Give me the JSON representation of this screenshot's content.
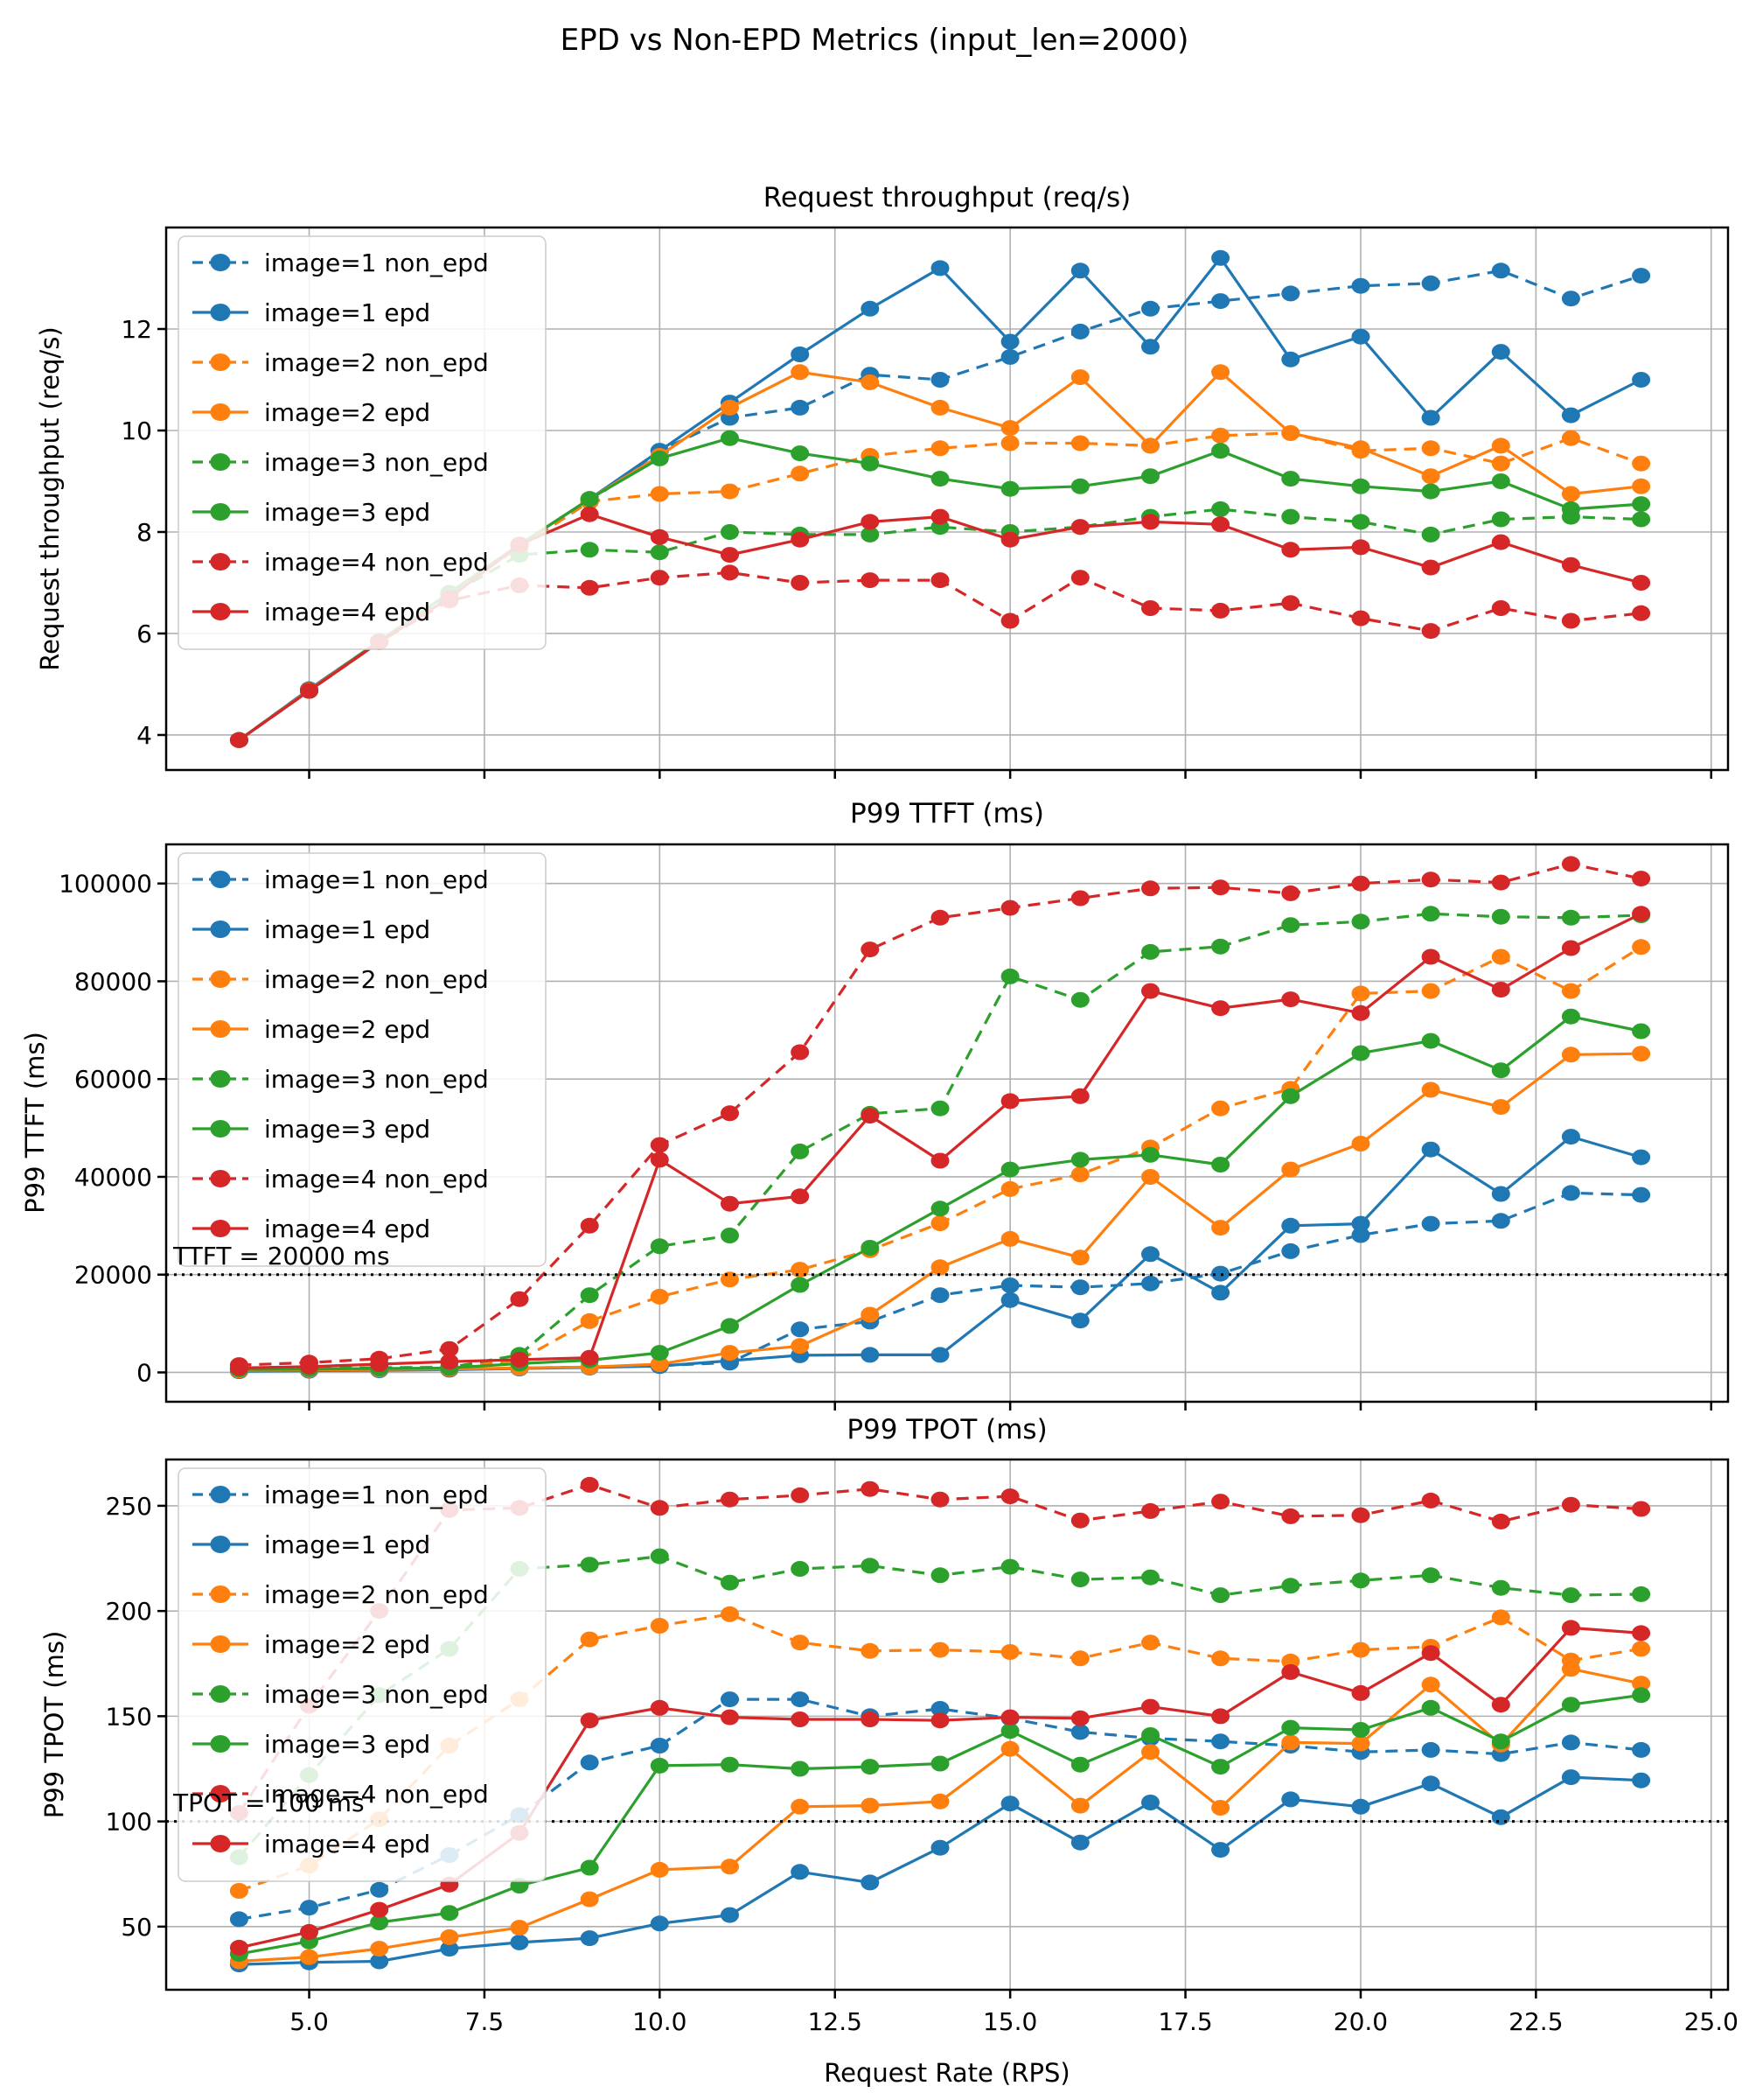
{
  "figure": {
    "title": "EPD vs Non-EPD Metrics (input_len=2000)",
    "xlabel": "Request Rate (RPS)",
    "background": "#ffffff",
    "grid_color": "#b0b0b0",
    "x_tick_values": [
      5.0,
      7.5,
      10.0,
      12.5,
      15.0,
      17.5,
      20.0,
      22.5,
      25.0
    ],
    "x_tick_labels": [
      "5.0",
      "7.5",
      "10.0",
      "12.5",
      "15.0",
      "17.5",
      "20.0",
      "22.5",
      "25.0"
    ]
  },
  "legend": {
    "items": [
      {
        "label": "image=1 non_epd",
        "color": "#1f77b4",
        "dashed": true
      },
      {
        "label": "image=1 epd",
        "color": "#1f77b4",
        "dashed": false
      },
      {
        "label": "image=2 non_epd",
        "color": "#ff7f0e",
        "dashed": true
      },
      {
        "label": "image=2 epd",
        "color": "#ff7f0e",
        "dashed": false
      },
      {
        "label": "image=3 non_epd",
        "color": "#2ca02c",
        "dashed": true
      },
      {
        "label": "image=3 epd",
        "color": "#2ca02c",
        "dashed": false
      },
      {
        "label": "image=4 non_epd",
        "color": "#d62728",
        "dashed": true
      },
      {
        "label": "image=4 epd",
        "color": "#d62728",
        "dashed": false
      }
    ]
  },
  "chart_data": [
    {
      "type": "line",
      "title": "Request throughput (req/s)",
      "ylabel": "Request throughput (req/s)",
      "xlabel": "",
      "x": [
        4,
        5,
        6,
        7,
        8,
        9,
        10,
        11,
        12,
        13,
        14,
        15,
        16,
        17,
        18,
        19,
        20,
        21,
        22,
        23,
        24
      ],
      "xlim": [
        2.96,
        25.24
      ],
      "ylim": [
        3.31,
        14.0
      ],
      "yticks": [
        4,
        6,
        8,
        10,
        12
      ],
      "ytick_labels": [
        "4",
        "6",
        "8",
        "10",
        "12"
      ],
      "grid": true,
      "legend_position": "upper-left",
      "series": [
        {
          "name": "image=1 non_epd",
          "color": "#1f77b4",
          "dashed": true,
          "values": [
            3.9,
            4.9,
            5.85,
            6.8,
            7.7,
            8.6,
            9.6,
            10.25,
            10.45,
            11.1,
            11.0,
            11.45,
            11.95,
            12.4,
            12.55,
            12.7,
            12.85,
            12.9,
            13.15,
            12.6,
            13.05
          ]
        },
        {
          "name": "image=1 epd",
          "color": "#1f77b4",
          "dashed": false,
          "values": [
            3.9,
            4.9,
            5.85,
            6.8,
            7.75,
            8.65,
            9.6,
            10.55,
            11.5,
            12.4,
            13.2,
            11.75,
            13.15,
            11.65,
            13.4,
            11.4,
            11.85,
            10.25,
            11.55,
            10.3,
            11.0
          ]
        },
        {
          "name": "image=2 non_epd",
          "color": "#ff7f0e",
          "dashed": true,
          "values": [
            3.9,
            4.88,
            5.85,
            6.8,
            7.7,
            8.6,
            8.75,
            8.8,
            9.15,
            9.5,
            9.65,
            9.75,
            9.75,
            9.7,
            9.9,
            9.95,
            9.6,
            9.65,
            9.35,
            9.85,
            9.35
          ]
        },
        {
          "name": "image=2 epd",
          "color": "#ff7f0e",
          "dashed": false,
          "values": [
            3.9,
            4.88,
            5.85,
            6.8,
            7.75,
            8.65,
            9.5,
            10.45,
            11.15,
            10.95,
            10.45,
            10.05,
            11.05,
            9.7,
            11.15,
            9.95,
            9.65,
            9.1,
            9.7,
            8.75,
            8.9
          ]
        },
        {
          "name": "image=3 non_epd",
          "color": "#2ca02c",
          "dashed": true,
          "values": [
            3.9,
            4.87,
            5.85,
            6.75,
            7.55,
            7.65,
            7.6,
            8.0,
            7.95,
            7.95,
            8.1,
            8.0,
            8.1,
            8.3,
            8.45,
            8.3,
            8.2,
            7.95,
            8.25,
            8.3,
            8.25
          ]
        },
        {
          "name": "image=3 epd",
          "color": "#2ca02c",
          "dashed": false,
          "values": [
            3.9,
            4.87,
            5.85,
            6.8,
            7.75,
            8.65,
            9.45,
            9.85,
            9.55,
            9.35,
            9.05,
            8.85,
            8.9,
            9.1,
            9.6,
            9.05,
            8.9,
            8.8,
            9.0,
            8.45,
            8.55
          ]
        },
        {
          "name": "image=4 non_epd",
          "color": "#d62728",
          "dashed": true,
          "values": [
            3.9,
            4.87,
            5.83,
            6.65,
            6.95,
            6.9,
            7.1,
            7.2,
            7.0,
            7.05,
            7.05,
            6.25,
            7.1,
            6.5,
            6.45,
            6.6,
            6.3,
            6.05,
            6.5,
            6.25,
            6.4
          ]
        },
        {
          "name": "image=4 epd",
          "color": "#d62728",
          "dashed": false,
          "values": [
            3.9,
            4.87,
            5.83,
            6.7,
            7.75,
            8.35,
            7.9,
            7.55,
            7.85,
            8.2,
            8.3,
            7.85,
            8.1,
            8.2,
            8.15,
            7.65,
            7.7,
            7.3,
            7.8,
            7.35,
            7.0
          ]
        }
      ]
    },
    {
      "type": "line",
      "title": "P99 TTFT (ms)",
      "ylabel": "P99 TTFT (ms)",
      "xlabel": "",
      "x": [
        4,
        5,
        6,
        7,
        8,
        9,
        10,
        11,
        12,
        13,
        14,
        15,
        16,
        17,
        18,
        19,
        20,
        21,
        22,
        23,
        24
      ],
      "xlim": [
        2.96,
        25.24
      ],
      "ylim": [
        -6000,
        108000
      ],
      "yticks": [
        0,
        20000,
        40000,
        60000,
        80000,
        100000
      ],
      "ytick_labels": [
        "0",
        "20000",
        "40000",
        "60000",
        "80000",
        "100000"
      ],
      "grid": true,
      "legend_position": "upper-left",
      "annotation": {
        "y": 20000,
        "text": "TTFT = 20000 ms"
      },
      "series": [
        {
          "name": "image=1 non_epd",
          "color": "#1f77b4",
          "dashed": true,
          "values": [
            300,
            400,
            500,
            600,
            900,
            1100,
            1400,
            2000,
            8800,
            10400,
            15800,
            17800,
            17400,
            18200,
            20200,
            24800,
            28100,
            30400,
            31000,
            36700,
            36300
          ]
        },
        {
          "name": "image=1 epd",
          "color": "#1f77b4",
          "dashed": false,
          "values": [
            250,
            350,
            450,
            550,
            800,
            1000,
            1300,
            2400,
            3500,
            3600,
            3600,
            14800,
            10600,
            24200,
            16300,
            30000,
            30400,
            45600,
            36500,
            48200,
            44000
          ]
        },
        {
          "name": "image=2 non_epd",
          "color": "#ff7f0e",
          "dashed": true,
          "values": [
            800,
            900,
            1000,
            1100,
            2500,
            10500,
            15500,
            19000,
            21000,
            25000,
            30500,
            37500,
            40500,
            46000,
            54000,
            58000,
            77500,
            78000,
            85000,
            78000,
            87000
          ]
        },
        {
          "name": "image=2 epd",
          "color": "#ff7f0e",
          "dashed": false,
          "values": [
            400,
            500,
            600,
            700,
            900,
            1100,
            1700,
            4000,
            5400,
            11800,
            21500,
            27300,
            23500,
            40000,
            29600,
            41500,
            46800,
            57800,
            54300,
            65000,
            65200
          ]
        },
        {
          "name": "image=3 non_epd",
          "color": "#2ca02c",
          "dashed": true,
          "values": [
            700,
            800,
            900,
            1000,
            3600,
            15800,
            25800,
            28000,
            45200,
            52900,
            54000,
            81000,
            76200,
            86000,
            87100,
            91500,
            92200,
            93800,
            93200,
            93000,
            93500
          ]
        },
        {
          "name": "image=3 epd",
          "color": "#2ca02c",
          "dashed": false,
          "values": [
            600,
            700,
            800,
            900,
            1800,
            2500,
            4000,
            9500,
            17900,
            25500,
            33500,
            41500,
            43500,
            44500,
            42500,
            56500,
            65300,
            67800,
            61800,
            72800,
            69800
          ]
        },
        {
          "name": "image=4 non_epd",
          "color": "#d62728",
          "dashed": true,
          "values": [
            1500,
            2000,
            2800,
            4800,
            15000,
            30000,
            46500,
            53000,
            65500,
            86500,
            93000,
            95000,
            97000,
            99000,
            99200,
            98000,
            100000,
            100800,
            100200,
            104000,
            101000
          ]
        },
        {
          "name": "image=4 epd",
          "color": "#d62728",
          "dashed": false,
          "values": [
            900,
            1200,
            1700,
            2200,
            2600,
            3000,
            43500,
            34500,
            36000,
            52500,
            43300,
            55500,
            56500,
            78000,
            74500,
            76300,
            73500,
            85000,
            78300,
            86800,
            93800
          ]
        }
      ]
    },
    {
      "type": "line",
      "title": "P99 TPOT (ms)",
      "ylabel": "P99 TPOT (ms)",
      "xlabel": "Request Rate (RPS)",
      "x": [
        4,
        5,
        6,
        7,
        8,
        9,
        10,
        11,
        12,
        13,
        14,
        15,
        16,
        17,
        18,
        19,
        20,
        21,
        22,
        23,
        24
      ],
      "xlim": [
        2.96,
        25.24
      ],
      "ylim": [
        20,
        272
      ],
      "yticks": [
        50,
        100,
        150,
        200,
        250
      ],
      "ytick_labels": [
        "50",
        "100",
        "150",
        "200",
        "250"
      ],
      "grid": true,
      "legend_position": "upper-left",
      "annotation": {
        "y": 100,
        "text": "TPOT = 100 ms"
      },
      "series": [
        {
          "name": "image=1 non_epd",
          "color": "#1f77b4",
          "dashed": true,
          "values": [
            53.5,
            59,
            67.5,
            84,
            103,
            128,
            136,
            158,
            158,
            150,
            153.5,
            149,
            142.5,
            139.5,
            138,
            136,
            133,
            134,
            132,
            137.5,
            134
          ]
        },
        {
          "name": "image=1 epd",
          "color": "#1f77b4",
          "dashed": false,
          "values": [
            32,
            33,
            33.5,
            39.5,
            42.5,
            44.5,
            51.5,
            55.5,
            76,
            71,
            87.5,
            108.5,
            90,
            109,
            86.5,
            110.5,
            107,
            118,
            102,
            121,
            119.5
          ]
        },
        {
          "name": "image=2 non_epd",
          "color": "#ff7f0e",
          "dashed": true,
          "values": [
            67,
            79,
            101,
            136,
            158,
            186.5,
            193,
            198.5,
            185,
            181,
            181.5,
            180.5,
            177.5,
            185,
            177.5,
            176,
            181.5,
            183,
            197,
            176.5,
            182
          ]
        },
        {
          "name": "image=2 epd",
          "color": "#ff7f0e",
          "dashed": false,
          "values": [
            33.5,
            35.5,
            39.5,
            45,
            49.5,
            63,
            77,
            78.5,
            107,
            107.5,
            109.5,
            134.5,
            107.5,
            133,
            106.5,
            137.5,
            137,
            165,
            136.5,
            172.5,
            165.5
          ]
        },
        {
          "name": "image=3 non_epd",
          "color": "#2ca02c",
          "dashed": true,
          "values": [
            83,
            122,
            160,
            182,
            220,
            222,
            226,
            213.5,
            220,
            221.5,
            217,
            221,
            215,
            216,
            207.5,
            212,
            214.5,
            217,
            211,
            207.5,
            208
          ]
        },
        {
          "name": "image=3 epd",
          "color": "#2ca02c",
          "dashed": false,
          "values": [
            37,
            43,
            52,
            56.5,
            69.5,
            78,
            126.5,
            127,
            125,
            126,
            127.5,
            143,
            127,
            141,
            126,
            144.5,
            143.5,
            154,
            138,
            155.5,
            160
          ]
        },
        {
          "name": "image=4 non_epd",
          "color": "#d62728",
          "dashed": true,
          "values": [
            104,
            155,
            200,
            248,
            249,
            260,
            249,
            253,
            255,
            258,
            253,
            254.5,
            243,
            247.5,
            252,
            245,
            245.5,
            252.5,
            242.5,
            250.5,
            248.5
          ]
        },
        {
          "name": "image=4 epd",
          "color": "#d62728",
          "dashed": false,
          "values": [
            40,
            47.5,
            58,
            70,
            94.5,
            148,
            154,
            149.5,
            148.5,
            148.5,
            148,
            149.5,
            149,
            154.5,
            150,
            171,
            161,
            180,
            155.5,
            192,
            189.5
          ]
        }
      ]
    }
  ]
}
